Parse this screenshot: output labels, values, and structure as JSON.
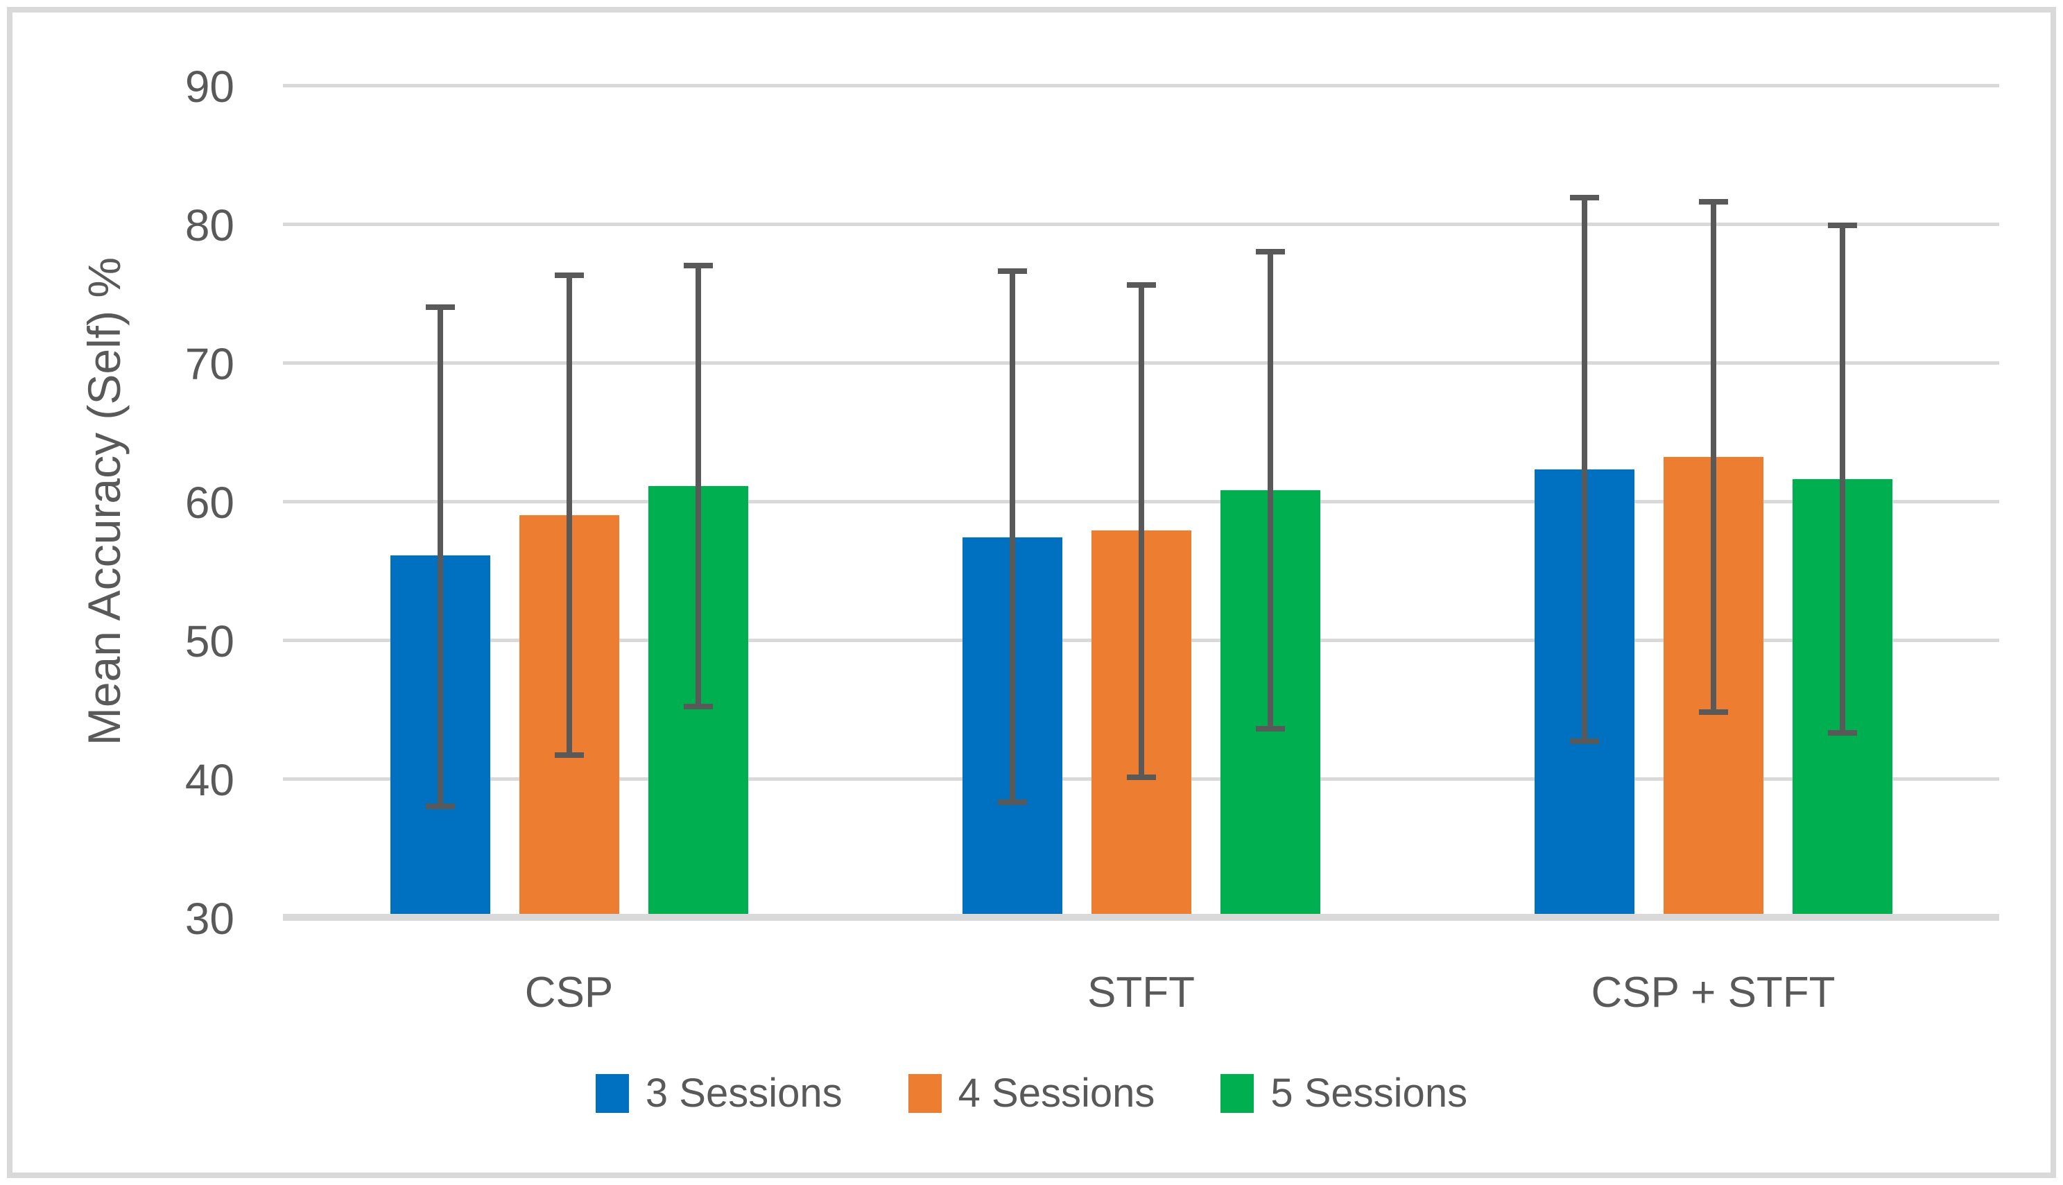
{
  "chart_data": {
    "type": "bar",
    "title": "",
    "xlabel": "",
    "ylabel": "Mean Accuracy (Self) %",
    "categories": [
      "CSP",
      "STFT",
      "CSP + STFT"
    ],
    "y_min": 30,
    "y_max": 90,
    "y_ticks": [
      90,
      80,
      70,
      60,
      50,
      40,
      30
    ],
    "grid": true,
    "legend_position": "bottom",
    "series": [
      {
        "name": "3 Sessions",
        "color": "#0070C0",
        "values": [
          56.1,
          57.4,
          62.3
        ],
        "error_high": [
          74.0,
          76.6,
          81.9
        ],
        "error_low": [
          38.0,
          38.3,
          42.7
        ]
      },
      {
        "name": "4 Sessions",
        "color": "#ED7D31",
        "values": [
          59.0,
          57.9,
          63.2
        ],
        "error_high": [
          76.3,
          75.6,
          81.6
        ],
        "error_low": [
          41.7,
          40.1,
          44.8
        ]
      },
      {
        "name": "5 Sessions",
        "color": "#00B050",
        "values": [
          61.1,
          60.8,
          61.6
        ],
        "error_high": [
          77.0,
          78.0,
          79.9
        ],
        "error_low": [
          45.2,
          43.6,
          43.3
        ]
      }
    ],
    "colors": {
      "gridline": "#D9D9D9",
      "axis_line": "#D9D9D9",
      "frame_border": "#D9D9D9",
      "error_bar": "#595959",
      "text": "#595959",
      "background": "#FFFFFF"
    }
  }
}
